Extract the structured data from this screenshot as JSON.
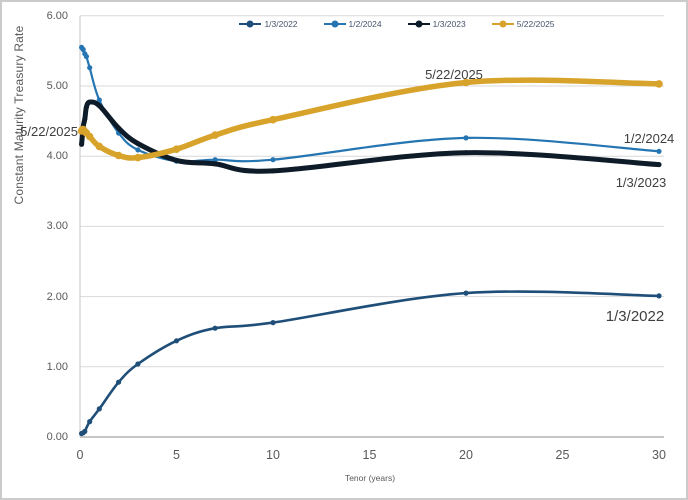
{
  "chart_data": {
    "type": "line",
    "title": "",
    "xlabel": "Tenor (years)",
    "ylabel": "Constant Maturity Treasury Rate",
    "xlim": [
      0,
      30
    ],
    "ylim": [
      0,
      6
    ],
    "x_ticks": [
      "0",
      "5",
      "10",
      "15",
      "20",
      "25",
      "30"
    ],
    "y_ticks": [
      "6.00",
      "5.00",
      "4.00",
      "3.00",
      "2.00",
      "1.00",
      "0.00"
    ],
    "grid": "horizontal",
    "legend_position": "top-center",
    "gridline_color": "#d9d9d9",
    "axis_color": "#c6c6c6",
    "tick_label_color": "#595959",
    "annotation_color": "#3f3f3f",
    "series": [
      {
        "name": "1/3/2022",
        "color": "#1F4E79",
        "width": 2.6,
        "marker_r": 2.6,
        "x": [
          0.083,
          0.167,
          0.25,
          0.5,
          1,
          2,
          3,
          5,
          7,
          10,
          20,
          30
        ],
        "values": [
          0.05,
          0.06,
          0.08,
          0.22,
          0.4,
          0.78,
          1.04,
          1.37,
          1.55,
          1.63,
          2.05,
          2.01
        ]
      },
      {
        "name": "1/2/2024",
        "color": "#2575B2",
        "width": 2.2,
        "marker_r": 2.6,
        "x": [
          0.083,
          0.167,
          0.25,
          0.333,
          0.5,
          1,
          2,
          3,
          5,
          7,
          10,
          20,
          30
        ],
        "values": [
          5.55,
          5.52,
          5.46,
          5.42,
          5.26,
          4.8,
          4.33,
          4.09,
          3.93,
          3.95,
          3.95,
          4.26,
          4.07
        ]
      },
      {
        "name": "1/3/2023",
        "color": "#0E1B28",
        "width": 5,
        "marker_r": 2.5,
        "x": [
          0.083,
          0.167,
          0.25,
          0.333,
          0.5,
          1,
          2,
          3,
          5,
          7,
          10,
          20,
          30
        ],
        "values": [
          4.17,
          4.42,
          4.53,
          4.7,
          4.77,
          4.72,
          4.4,
          4.18,
          3.94,
          3.89,
          3.79,
          4.05,
          3.88
        ]
      },
      {
        "name": "5/22/2025",
        "color": "#D8A32A",
        "width": 5.5,
        "marker_r": 3.8,
        "x": [
          0.083,
          0.125,
          0.167,
          0.25,
          0.333,
          0.5,
          1,
          2,
          3,
          5,
          7,
          10,
          20,
          30
        ],
        "values": [
          4.36,
          4.38,
          4.38,
          4.35,
          4.33,
          4.28,
          4.14,
          4.01,
          3.98,
          4.1,
          4.3,
          4.52,
          5.05,
          5.03
        ]
      }
    ],
    "annotations": [
      {
        "text": "5/22/2025",
        "target": "series 5/22/2025 first point, left of start"
      },
      {
        "text": "5/22/2025",
        "target": "series 5/22/2025, above line near 17y"
      },
      {
        "text": "1/2/2024",
        "target": "series 1/2/2024, right end"
      },
      {
        "text": "1/3/2023",
        "target": "series 1/3/2023, below right end"
      },
      {
        "text": "1/3/2022",
        "target": "series 1/3/2022, below right end"
      }
    ]
  }
}
